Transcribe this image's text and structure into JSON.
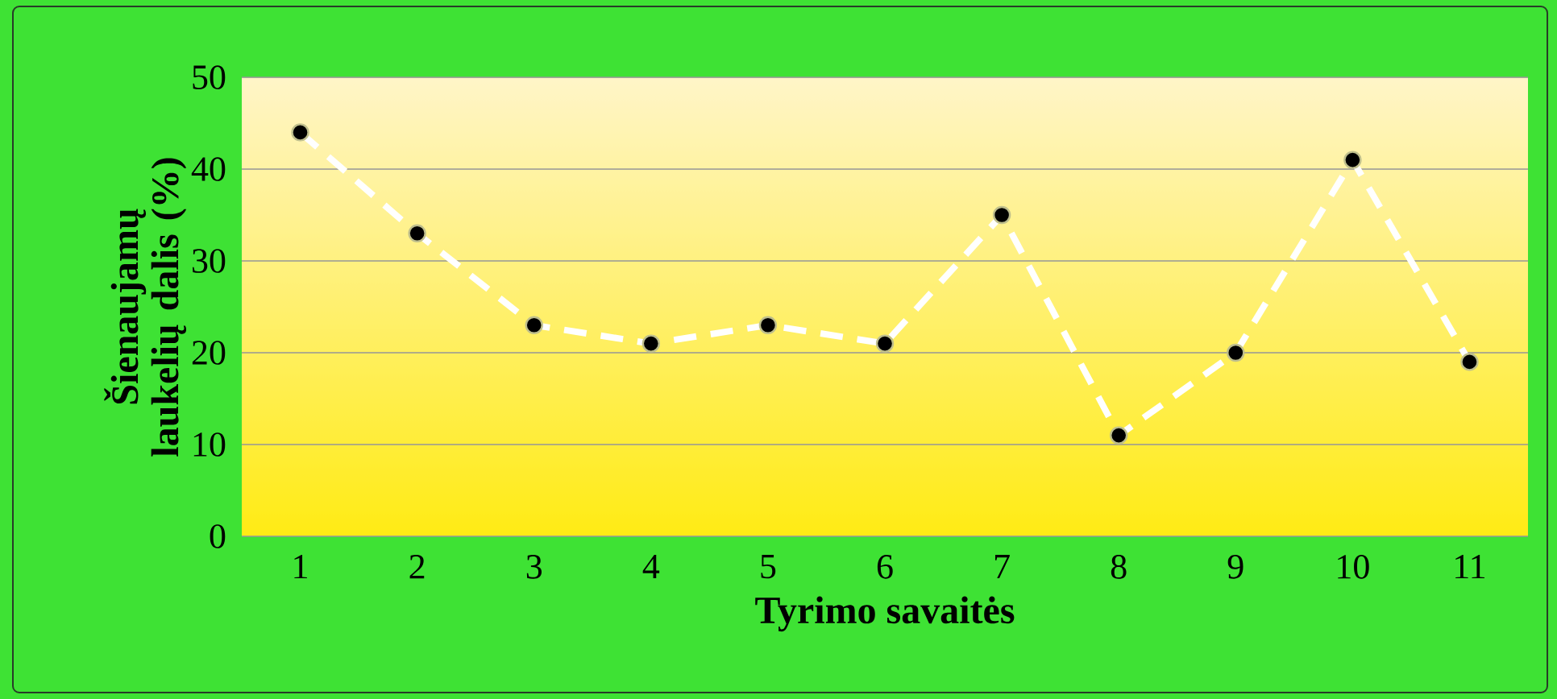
{
  "chart_data": {
    "type": "line",
    "xlabel": "Tyrimo savaitės",
    "ylabel": "Šienaujamų laukelių dalis (%)",
    "categories": [
      "1",
      "2",
      "3",
      "4",
      "5",
      "6",
      "7",
      "8",
      "9",
      "10",
      "11"
    ],
    "series": [
      {
        "color": "#ffffff",
        "values": [
          44,
          33,
          23,
          21,
          23,
          21,
          35,
          11,
          20,
          41,
          19
        ]
      }
    ],
    "ylim": [
      0,
      50
    ],
    "yticks": [
      0,
      10,
      20,
      30,
      40,
      50
    ],
    "grid": "y",
    "marker": "circle",
    "line_style": "dashed"
  }
}
